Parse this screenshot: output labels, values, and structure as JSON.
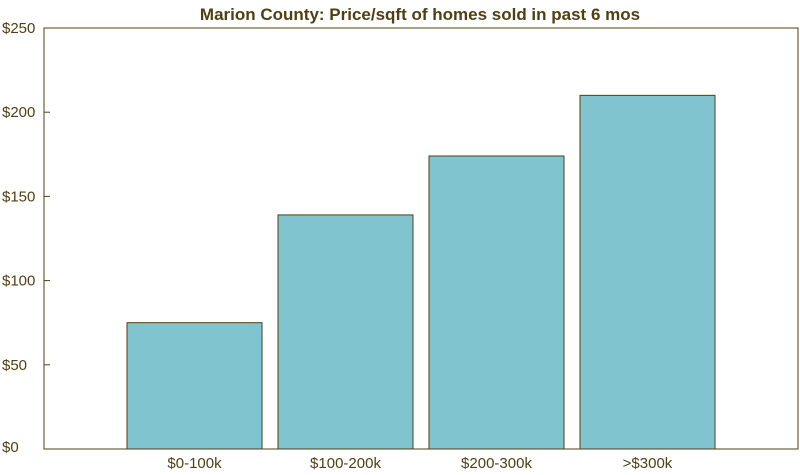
{
  "chart_data": {
    "type": "bar",
    "title": "Marion County: Price/sqft of homes sold in past 6 mos",
    "xlabel": "",
    "ylabel": "",
    "categories": [
      "$0-100k",
      "$100-200k",
      "$200-300k",
      ">$300k"
    ],
    "values": [
      75,
      139,
      174,
      210
    ],
    "ylim": [
      0,
      250
    ],
    "yticks": [
      0,
      50,
      100,
      150,
      200,
      250
    ],
    "ytick_labels": [
      "$0",
      "$50",
      "$100",
      "$150",
      "$200",
      "$250"
    ],
    "grid": false,
    "legend": "none",
    "colors": {
      "bar_fill": "#80c4d0",
      "outline": "#4f3f12",
      "text": "#4f3f12"
    }
  }
}
